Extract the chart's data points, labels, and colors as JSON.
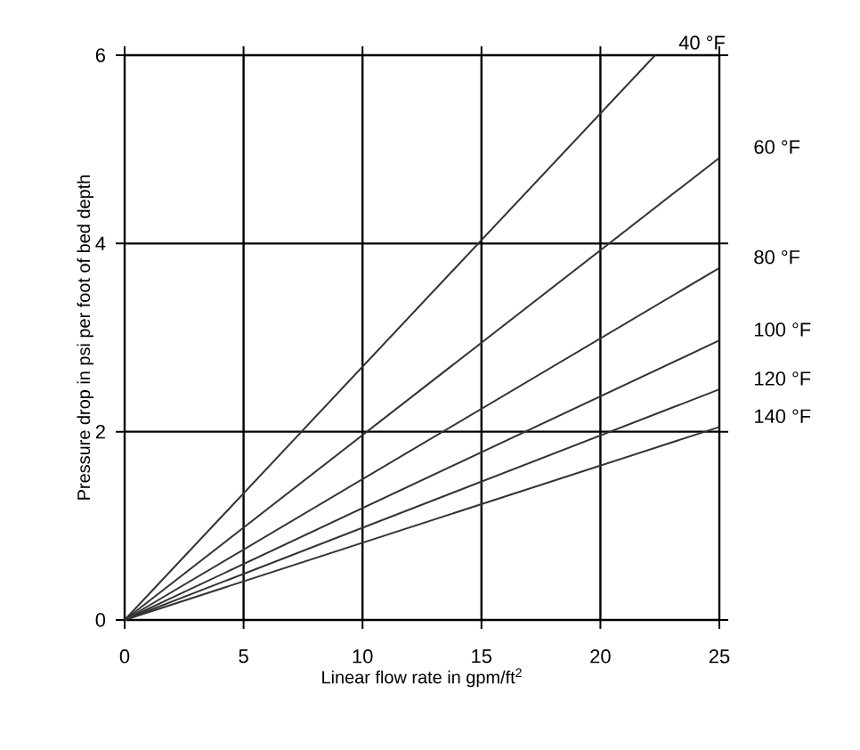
{
  "chart_data": {
    "type": "line",
    "xlabel": "Linear flow rate in gpm/ft$^{2}$",
    "ylabel": "Pressure drop in psi per foot of bed depth",
    "xlim": [
      0,
      25
    ],
    "ylim": [
      0,
      6
    ],
    "xticks": [
      0,
      5,
      10,
      15,
      20,
      25
    ],
    "yticks": [
      0,
      2,
      4,
      6
    ],
    "grid": true,
    "marker": "none",
    "line_style": "solid",
    "series": [
      {
        "name": "40 °F",
        "color": "#333333",
        "x": [
          0,
          22.3
        ],
        "values": [
          0,
          6
        ]
      },
      {
        "name": "60 °F",
        "color": "#333333",
        "x": [
          0,
          25
        ],
        "values": [
          0,
          4.91
        ]
      },
      {
        "name": "80 °F",
        "color": "#333333",
        "x": [
          0,
          25
        ],
        "values": [
          0,
          3.74
        ]
      },
      {
        "name": "100 °F",
        "color": "#333333",
        "x": [
          0,
          25
        ],
        "values": [
          0,
          2.97
        ]
      },
      {
        "name": "120 °F",
        "color": "#333333",
        "x": [
          0,
          25
        ],
        "values": [
          0,
          2.45
        ]
      },
      {
        "name": "140 °F",
        "color": "#333333",
        "x": [
          0,
          25
        ],
        "values": [
          0,
          2.05
        ]
      }
    ]
  }
}
